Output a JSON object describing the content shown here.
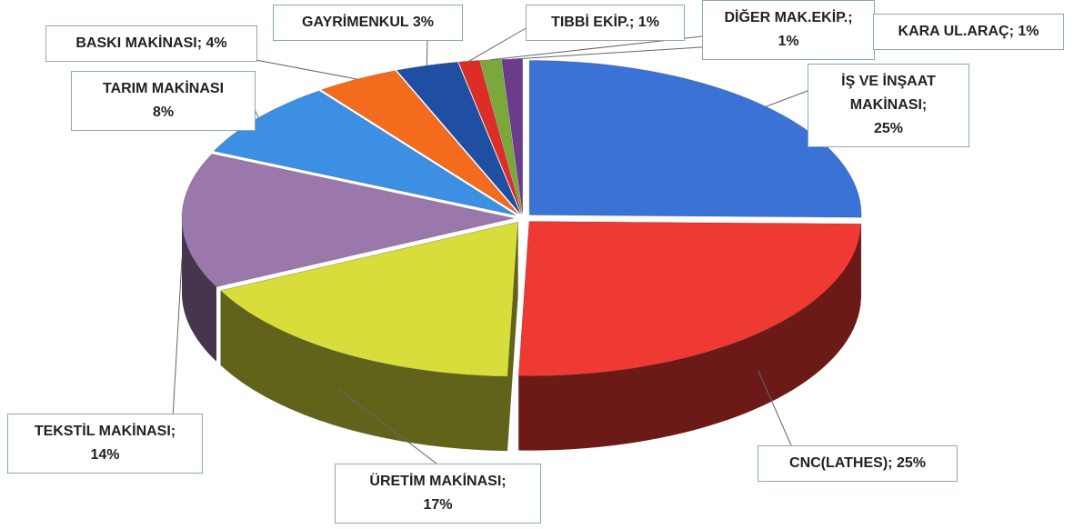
{
  "chart_data": {
    "type": "pie3d",
    "categories": [
      "İŞ VE İNŞAAT MAKİNASI;",
      "CNC(LATHES);",
      "ÜRETİM MAKİNASI;",
      "TEKSTİL MAKİNASI;",
      "TARIM MAKİNASI",
      "BASKI MAKİNASI;",
      "GAYRİMENKUL",
      "TIBBİ EKİP.;",
      "DİĞER MAK.EKİP.;",
      "KARA UL.ARAÇ;"
    ],
    "values": [
      25,
      25,
      17,
      14,
      8,
      4,
      3,
      1,
      1,
      1
    ],
    "value_labels": [
      "25%",
      "25%",
      "17%",
      "14%",
      "8%",
      "4%",
      "3%",
      "1%",
      "1%",
      "1%"
    ],
    "colors": [
      "#3a72d6",
      "#ef3a33",
      "#d9dd3c",
      "#9b78ab",
      "#3c8fe2",
      "#f46b1e",
      "#1f4ea3",
      "#dc2e27",
      "#7aa83a",
      "#6b3c8c"
    ]
  }
}
